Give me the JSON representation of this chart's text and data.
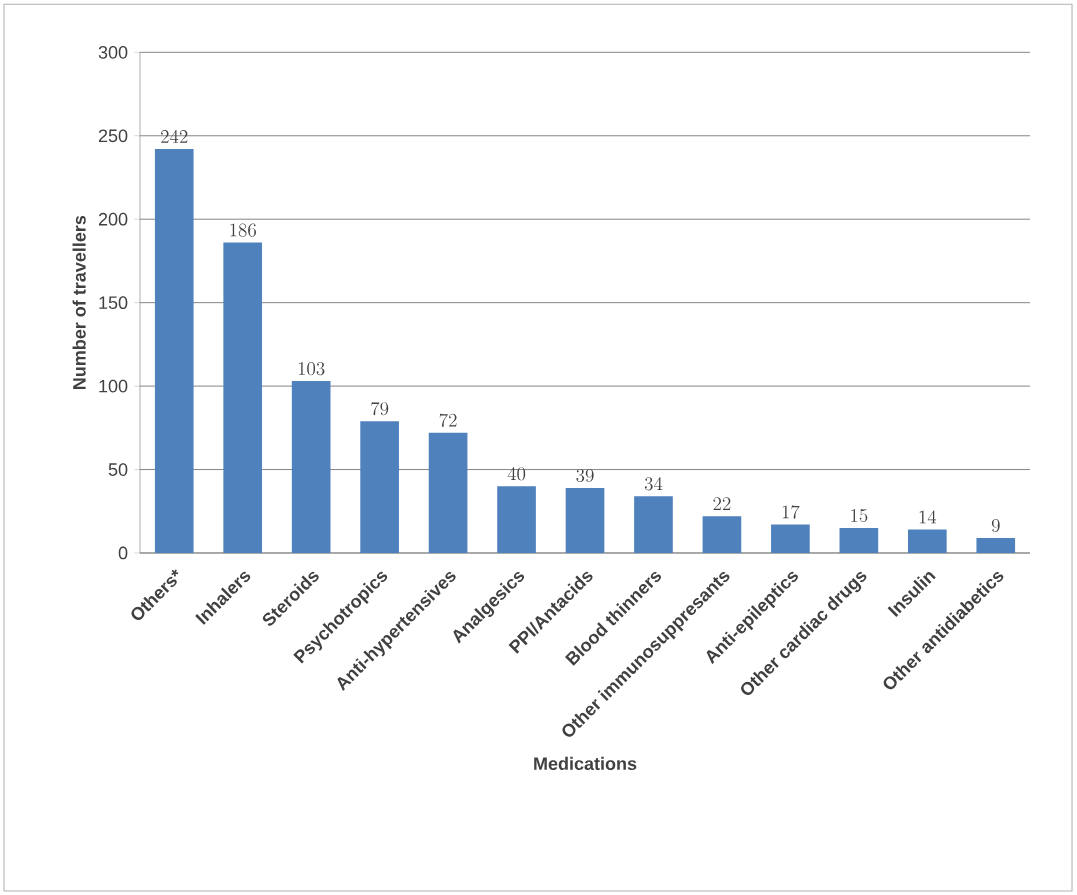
{
  "chart_data": {
    "type": "bar",
    "xlabel": "Medications",
    "ylabel": "Number of travellers",
    "categories": [
      "Others*",
      "Inhalers",
      "Steroids",
      "Psychotropics",
      "Anti-hypertensives",
      "Analgesics",
      "PPI/Antacids",
      "Blood thinners",
      "Other immunosuppresants",
      "Anti-epileptics",
      "Other cardiac drugs",
      "Insulin",
      "Other antidiabetics"
    ],
    "values": [
      242,
      186,
      103,
      79,
      72,
      40,
      39,
      34,
      22,
      17,
      15,
      14,
      9
    ],
    "color": "#4f81bd",
    "ylim": [
      0,
      300
    ],
    "yticks": [
      0,
      50,
      100,
      150,
      200,
      250,
      300
    ],
    "grid": "y",
    "data_labels": true
  }
}
